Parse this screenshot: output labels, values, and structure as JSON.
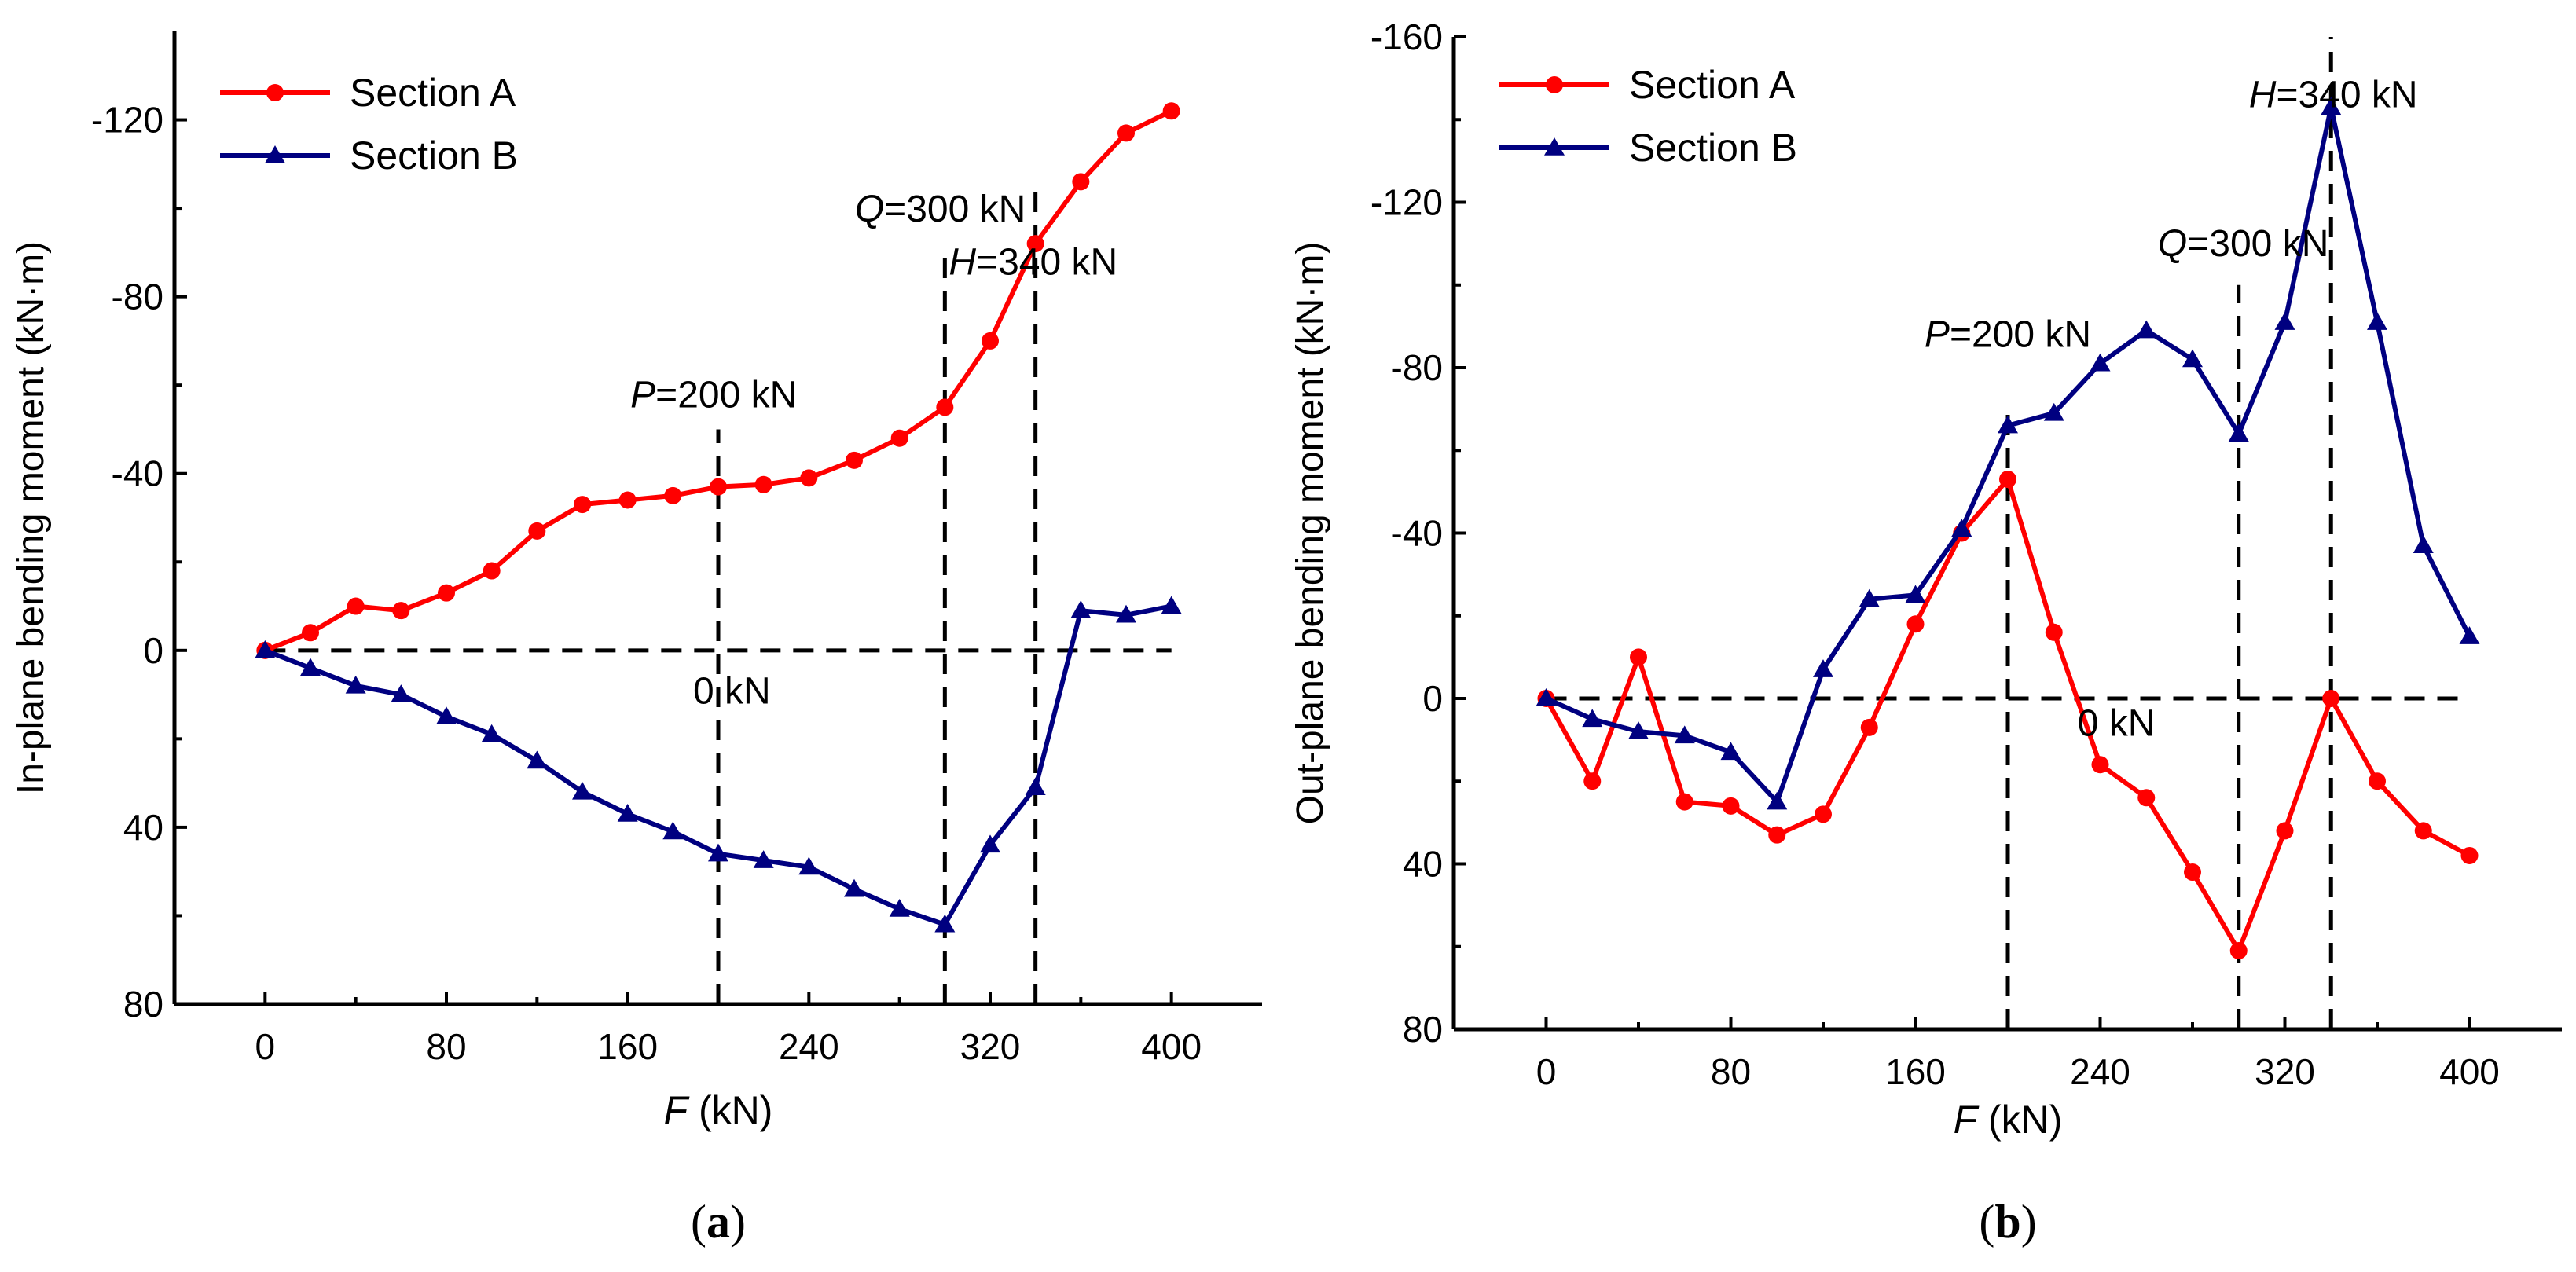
{
  "chart_data": [
    {
      "id": "a",
      "type": "line",
      "panel_label": "(a)",
      "panel_label_letter": "a",
      "xlabel_var": "F",
      "xlabel_unit": " (kN)",
      "ylabel": "In-plane bending moment  (kN·m)",
      "xlim": [
        -40,
        440
      ],
      "ylim": [
        80,
        -140
      ],
      "xticks": [
        0,
        80,
        160,
        240,
        320,
        400
      ],
      "xtick_labels": [
        "0",
        "80",
        "160",
        "240",
        "320",
        "400"
      ],
      "yticks": [
        80,
        40,
        0,
        -40,
        -80,
        -120
      ],
      "ytick_labels": [
        "80",
        "40",
        "0",
        "-40",
        "-80",
        "-120"
      ],
      "legend_position": "top-left",
      "series": [
        {
          "name": "Section A",
          "color": "#ff0000",
          "marker": "circle",
          "x": [
            0,
            20,
            40,
            60,
            80,
            100,
            120,
            140,
            160,
            180,
            200,
            220,
            240,
            260,
            280,
            300,
            320,
            340,
            360,
            380,
            400
          ],
          "values": [
            0,
            -4,
            -10,
            -9,
            -13,
            -18,
            -27,
            -33,
            -34,
            -35,
            -37,
            -37.5,
            -39,
            -43,
            -48,
            -55,
            -70,
            -92,
            -106,
            -117,
            -122
          ]
        },
        {
          "name": "Section B",
          "color": "#000080",
          "marker": "triangle",
          "x": [
            0,
            20,
            40,
            60,
            80,
            100,
            120,
            140,
            160,
            180,
            200,
            220,
            240,
            260,
            280,
            300,
            320,
            340,
            360,
            380,
            400
          ],
          "values": [
            0,
            4,
            8,
            10,
            15,
            19,
            25,
            32,
            37,
            41,
            46,
            47.5,
            49,
            54,
            58.5,
            62,
            44,
            31,
            -9,
            -8,
            -10
          ]
        }
      ],
      "reference_lines": [
        {
          "type": "horizontal",
          "y": 0,
          "x_from": 0,
          "x_to": 400
        },
        {
          "type": "vertical",
          "x": 200,
          "y_from": 80,
          "y_to": -50
        },
        {
          "type": "vertical",
          "x": 300,
          "y_from": 80,
          "y_to": -90
        },
        {
          "type": "vertical",
          "x": 340,
          "y_from": 80,
          "y_to": -104
        }
      ],
      "annotations": [
        {
          "var": "P",
          "text": "=200 kN",
          "x": 198,
          "y": -55
        },
        {
          "var": "Q",
          "text": "=300 kN",
          "x": 298,
          "y": -97
        },
        {
          "var": "H",
          "text": "=340 kN",
          "x": 339,
          "y": -85
        },
        {
          "var": "",
          "text": "0 kN",
          "x": 206,
          "y": 12
        }
      ]
    },
    {
      "id": "b",
      "type": "line",
      "panel_label": "(b)",
      "panel_label_letter": "b",
      "xlabel_var": "F",
      "xlabel_unit": " (kN)",
      "ylabel": "Out-plane bending moment (kN·m)",
      "xlim": [
        -40,
        440
      ],
      "ylim": [
        80,
        -160
      ],
      "xticks": [
        0,
        80,
        160,
        240,
        320,
        400
      ],
      "xtick_labels": [
        "0",
        "80",
        "160",
        "240",
        "320",
        "400"
      ],
      "yticks": [
        80,
        40,
        0,
        -40,
        -80,
        -120,
        -160
      ],
      "ytick_labels": [
        "80",
        "40",
        "0",
        "-40",
        "-80",
        "-120",
        "-160"
      ],
      "legend_position": "top-left",
      "series": [
        {
          "name": "Section A",
          "color": "#ff0000",
          "marker": "circle",
          "x": [
            0,
            20,
            40,
            60,
            80,
            100,
            120,
            140,
            160,
            180,
            200,
            220,
            240,
            260,
            280,
            300,
            320,
            340,
            360,
            380,
            400
          ],
          "values": [
            0,
            20,
            -10,
            25,
            26,
            33,
            28,
            7,
            -18,
            -40,
            -53,
            -16,
            16,
            24,
            42,
            61,
            32,
            0,
            20,
            32,
            38
          ]
        },
        {
          "name": "Section B",
          "color": "#000080",
          "marker": "triangle",
          "x": [
            0,
            20,
            40,
            60,
            80,
            100,
            120,
            140,
            160,
            180,
            200,
            220,
            240,
            260,
            280,
            300,
            320,
            340,
            360,
            380,
            400
          ],
          "values": [
            0,
            5,
            8,
            9,
            13,
            25,
            -7,
            -24,
            -25,
            -41,
            -66,
            -69,
            -81,
            -89,
            -82,
            -64,
            -91,
            -143,
            -91,
            -37,
            -15
          ]
        }
      ],
      "reference_lines": [
        {
          "type": "horizontal",
          "y": 0,
          "x_from": 0,
          "x_to": 400
        },
        {
          "type": "vertical",
          "x": 200,
          "y_from": 80,
          "y_to": -71
        },
        {
          "type": "vertical",
          "x": 300,
          "y_from": 80,
          "y_to": -100
        },
        {
          "type": "vertical",
          "x": 340,
          "y_from": 80,
          "y_to": -160
        }
      ],
      "annotations": [
        {
          "var": "P",
          "text": "=200 kN",
          "x": 200,
          "y": -85
        },
        {
          "var": "Q",
          "text": "=300 kN",
          "x": 302,
          "y": -107
        },
        {
          "var": "H",
          "text": "=340 kN",
          "x": 341,
          "y": -143
        },
        {
          "var": "",
          "text": "0 kN",
          "x": 247,
          "y": 9
        }
      ]
    }
  ]
}
